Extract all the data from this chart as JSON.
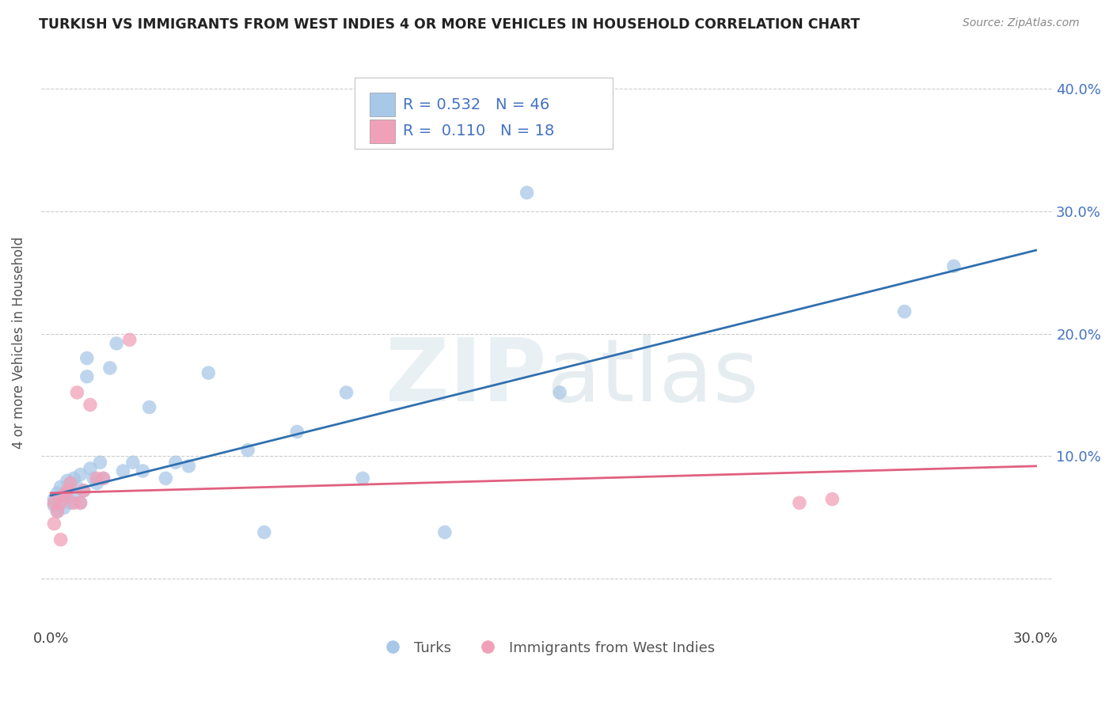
{
  "title": "TURKISH VS IMMIGRANTS FROM WEST INDIES 4 OR MORE VEHICLES IN HOUSEHOLD CORRELATION CHART",
  "source": "Source: ZipAtlas.com",
  "ylabel": "4 or more Vehicles in Household",
  "xlim": [
    -0.003,
    0.305
  ],
  "ylim": [
    -0.04,
    0.425
  ],
  "xticks": [
    0.0,
    0.05,
    0.1,
    0.15,
    0.2,
    0.25,
    0.3
  ],
  "yticks": [
    0.0,
    0.1,
    0.2,
    0.3,
    0.4
  ],
  "xtick_labels": [
    "0.0%",
    "",
    "",
    "",
    "",
    "",
    "30.0%"
  ],
  "ytick_right_labels": [
    "",
    "10.0%",
    "20.0%",
    "30.0%",
    "40.0%"
  ],
  "blue_R": 0.532,
  "blue_N": 46,
  "pink_R": 0.11,
  "pink_N": 18,
  "blue_color": "#a8c8e8",
  "pink_color": "#f0a0b8",
  "blue_line_color": "#3070b0",
  "pink_line_color": "#e06080",
  "watermark_zip": "ZIP",
  "watermark_atlas": "atlas",
  "legend_label_blue": "Turks",
  "legend_label_pink": "Immigrants from West Indies",
  "blue_x": [
    0.001,
    0.001,
    0.002,
    0.002,
    0.003,
    0.003,
    0.004,
    0.004,
    0.005,
    0.005,
    0.005,
    0.006,
    0.006,
    0.007,
    0.007,
    0.008,
    0.009,
    0.009,
    0.01,
    0.011,
    0.011,
    0.012,
    0.013,
    0.014,
    0.015,
    0.016,
    0.018,
    0.02,
    0.022,
    0.025,
    0.028,
    0.03,
    0.035,
    0.038,
    0.042,
    0.048,
    0.06,
    0.065,
    0.075,
    0.09,
    0.095,
    0.12,
    0.145,
    0.155,
    0.26,
    0.275
  ],
  "blue_y": [
    0.065,
    0.06,
    0.07,
    0.055,
    0.075,
    0.062,
    0.068,
    0.058,
    0.08,
    0.065,
    0.072,
    0.078,
    0.062,
    0.082,
    0.068,
    0.075,
    0.085,
    0.062,
    0.072,
    0.18,
    0.165,
    0.09,
    0.082,
    0.078,
    0.095,
    0.082,
    0.172,
    0.192,
    0.088,
    0.095,
    0.088,
    0.14,
    0.082,
    0.095,
    0.092,
    0.168,
    0.105,
    0.038,
    0.12,
    0.152,
    0.082,
    0.038,
    0.315,
    0.152,
    0.218,
    0.255
  ],
  "pink_x": [
    0.001,
    0.001,
    0.002,
    0.003,
    0.003,
    0.004,
    0.005,
    0.006,
    0.007,
    0.008,
    0.009,
    0.01,
    0.012,
    0.014,
    0.016,
    0.024,
    0.228,
    0.238
  ],
  "pink_y": [
    0.062,
    0.045,
    0.055,
    0.032,
    0.062,
    0.068,
    0.072,
    0.078,
    0.062,
    0.152,
    0.062,
    0.072,
    0.142,
    0.082,
    0.082,
    0.195,
    0.062,
    0.065
  ],
  "blue_line_x0": 0.0,
  "blue_line_y0": 0.068,
  "blue_line_x1": 0.3,
  "blue_line_y1": 0.268,
  "pink_line_x0": 0.0,
  "pink_line_y0": 0.07,
  "pink_line_x1": 0.3,
  "pink_line_y1": 0.092
}
